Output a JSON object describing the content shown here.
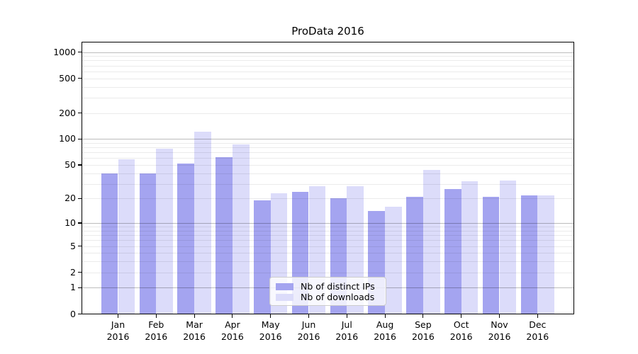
{
  "title": "ProData 2016",
  "chart_data": {
    "type": "bar",
    "title": "ProData 2016",
    "xlabel": "",
    "ylabel": "",
    "yscale": "log1p",
    "ylim": [
      0,
      1320
    ],
    "grid": "horizontal",
    "legend_position": "lower center",
    "categories": [
      "Jan 2016",
      "Feb 2016",
      "Mar 2016",
      "Apr 2016",
      "May 2016",
      "Jun 2016",
      "Jul 2016",
      "Aug 2016",
      "Sep 2016",
      "Oct 2016",
      "Nov 2016",
      "Dec 2016"
    ],
    "y_ticks": [
      0,
      1,
      2,
      5,
      10,
      20,
      50,
      100,
      200,
      500,
      1000
    ],
    "series": [
      {
        "name": "Nb of distinct IPs",
        "color": "#a4a4f0",
        "values": [
          40,
          40,
          52,
          61,
          19,
          24,
          20,
          14,
          21,
          26,
          21,
          22
        ]
      },
      {
        "name": "Nb of downloads",
        "color": "#dcdcfa",
        "values": [
          58,
          77,
          121,
          86,
          23,
          28,
          28,
          16,
          44,
          32,
          33,
          22
        ]
      }
    ]
  },
  "colors": {
    "major_gridline": "rgba(0,0,0,0.26)",
    "minor_gridline": "rgba(0,0,0,0.08)",
    "axis": "#000000",
    "legend_border": "#cccccc"
  }
}
